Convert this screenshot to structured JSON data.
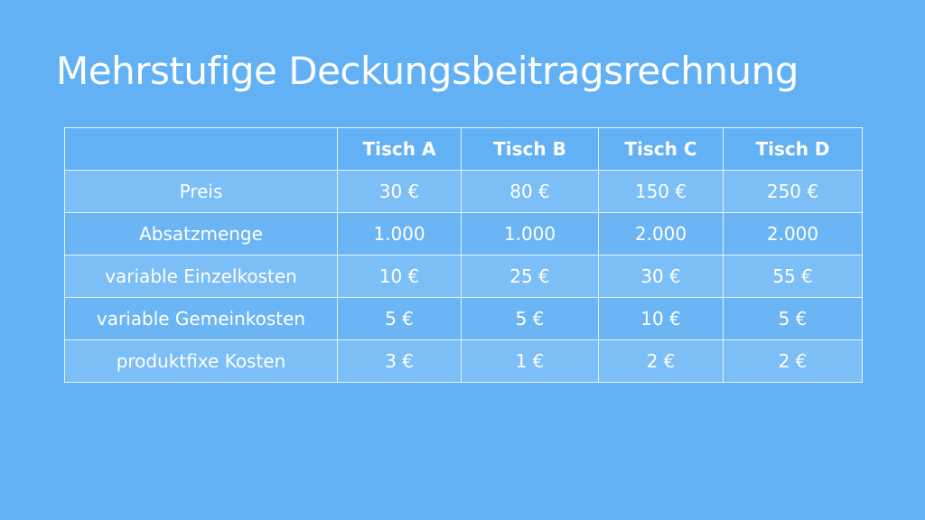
{
  "slide": {
    "title": "Mehrstufige Deckungsbeitragsrechnung",
    "background_color": "#62b1f5",
    "text_color": "#ffffff"
  },
  "table": {
    "corner": "",
    "columns": [
      "Tisch A",
      "Tisch B",
      "Tisch C",
      "Tisch D"
    ],
    "rows": [
      {
        "label": "Preis",
        "values": [
          "30 €",
          "80 €",
          "150 €",
          "250 €"
        ]
      },
      {
        "label": "Absatzmenge",
        "values": [
          "1.000",
          "1.000",
          "2.000",
          "2.000"
        ]
      },
      {
        "label": "variable Einzelkosten",
        "values": [
          "10 €",
          "25 €",
          "30 €",
          "55 €"
        ]
      },
      {
        "label": "variable Gemeinkosten",
        "values": [
          "5 €",
          "5 €",
          "10 €",
          "5 €"
        ]
      },
      {
        "label": "produktfixe Kosten",
        "values": [
          "3 €",
          "1 €",
          "2 €",
          "2 €"
        ]
      }
    ]
  }
}
